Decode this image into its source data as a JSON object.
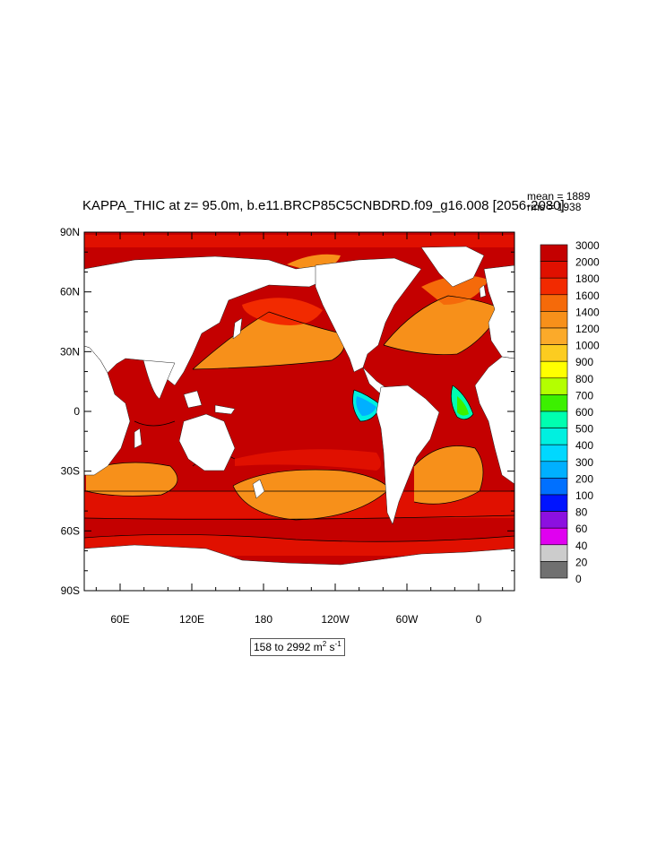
{
  "title": "KAPPA_THIC at z=  95.0m, b.e11.BRCP85C5CNBDRD.f09_g16.008 [2056-2080]",
  "stats": {
    "mean": "mean = 1889",
    "rms": "rms = 1938"
  },
  "axes": {
    "lat_ticks": [
      "90N",
      "60N",
      "30N",
      "0",
      "30S",
      "60S",
      "90S"
    ],
    "lon_ticks": [
      "60E",
      "120E",
      "180",
      "120W",
      "60W",
      "0"
    ]
  },
  "colorbar": {
    "levels": [
      "3000",
      "2000",
      "1800",
      "1600",
      "1400",
      "1200",
      "1000",
      "900",
      "800",
      "700",
      "600",
      "500",
      "400",
      "300",
      "200",
      "100",
      "80",
      "60",
      "40",
      "20",
      "0"
    ],
    "colors": [
      "#c40000",
      "#e01000",
      "#f22a00",
      "#f56a0a",
      "#f7901a",
      "#fbaa2a",
      "#fccc20",
      "#ffff00",
      "#b4ff00",
      "#3cf000",
      "#00ffb0",
      "#00f0e0",
      "#00d8ff",
      "#00b0ff",
      "#0070ff",
      "#0014ff",
      "#8c10e0",
      "#e000f0",
      "#cccccc",
      "#707070"
    ]
  },
  "range": {
    "prefix": "158 to 2992 m",
    "exp1": "2",
    "mid": " s",
    "exp2": "-1"
  }
}
